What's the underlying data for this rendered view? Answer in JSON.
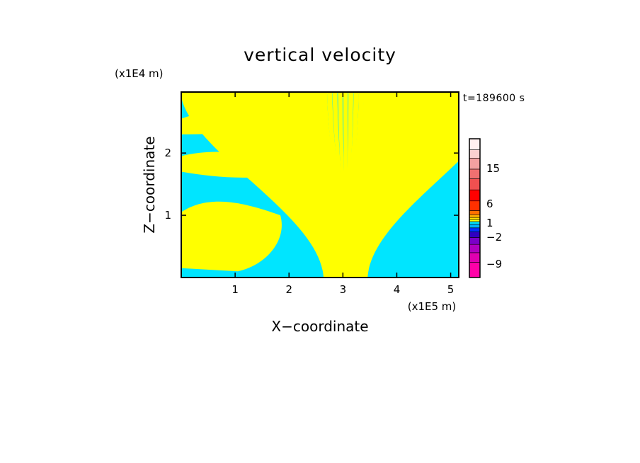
{
  "chart_data": {
    "type": "heatmap",
    "title": "vertical velocity",
    "xlabel": "X−coordinate",
    "ylabel": "Z−coordinate",
    "x_unit": "(x1E5 m)",
    "y_unit": "(x1E4 m)",
    "time_label": "t=189600 s",
    "xlim": [
      0,
      5.15
    ],
    "ylim": [
      0,
      2.98
    ],
    "x_ticks": [
      1,
      2,
      3,
      4,
      5
    ],
    "y_ticks": [
      1,
      2
    ],
    "colors": {
      "positive": "#ffff00",
      "negative": "#00e5ff"
    },
    "colorbar": {
      "bands": [
        "#ff00a8",
        "#e000b0",
        "#b000c0",
        "#7a00c8",
        "#3000c0",
        "#0030ff",
        "#00b0ff",
        "#00e5ff",
        "#ffff00",
        "#ffe000",
        "#ffb000",
        "#ff7000",
        "#ff3000",
        "#ff0000",
        "#f05050",
        "#f07070",
        "#f4a0a0",
        "#fbd0d0",
        "#fff0f0"
      ],
      "labels": [
        "15",
        "6",
        "1",
        "−2",
        "−9"
      ]
    }
  }
}
